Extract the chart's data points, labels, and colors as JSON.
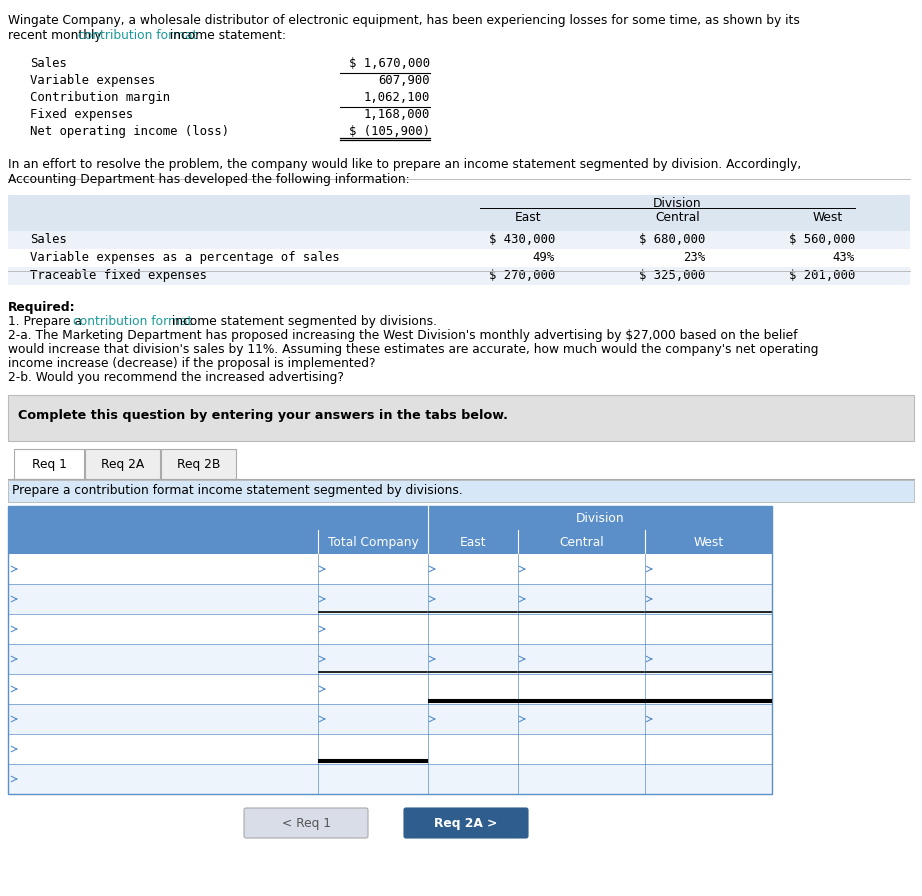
{
  "bg_color": "#ffffff",
  "mono_font": "DejaVu Sans Mono",
  "sans_font": "DejaVu Sans",
  "text_color": "#000000",
  "teal_color": "#1a9a9a",
  "blue_color": "#1e4d78",
  "title_line1": "Wingate Company, a wholesale distributor of electronic equipment, has been experiencing losses for some time, as shown by its",
  "title_line2_parts": [
    {
      "text": "recent monthly ",
      "teal": false
    },
    {
      "text": "contribution format",
      "teal": true
    },
    {
      "text": " income statement:",
      "teal": false
    }
  ],
  "income_rows": [
    {
      "label": "Sales",
      "value": "$ 1,670,000",
      "line_above": false,
      "double_below": false
    },
    {
      "label": "Variable expenses",
      "value": "607,900",
      "line_above": true,
      "double_below": false
    },
    {
      "label": "Contribution margin",
      "value": "1,062,100",
      "line_above": false,
      "double_below": false
    },
    {
      "label": "Fixed expenses",
      "value": "1,168,000",
      "line_above": true,
      "double_below": false
    },
    {
      "label": "Net operating income (loss)",
      "value": "$ (105,900)",
      "line_above": false,
      "double_below": true
    }
  ],
  "div_intro_parts": [
    {
      "text": "In an effort to resolve the problem, the company would like to prepare an income statement segmented by division. Accordingly,",
      "teal": false
    },
    {
      "text": "Accounting Department has developed the following information:",
      "teal": false
    }
  ],
  "div_table_rows": [
    {
      "label": "Sales",
      "east": "$ 430,000",
      "central": "$ 680,000",
      "west": "$ 560,000"
    },
    {
      "label": "Variable expenses as a percentage of sales",
      "east": "49%",
      "central": "23%",
      "west": "43%"
    },
    {
      "label": "Traceable fixed expenses",
      "east": "$ 270,000",
      "central": "$ 325,000",
      "west": "$ 201,000"
    }
  ],
  "div_table_bg": "#dce6f1",
  "div_table_row_bg": "#edf2f8",
  "req_lines": [
    {
      "text": "Required:",
      "bold": true,
      "parts": null
    },
    {
      "text": null,
      "bold": false,
      "parts": [
        {
          "text": "1. Prepare a ",
          "teal": false
        },
        {
          "text": "contribution format",
          "teal": true
        },
        {
          "text": " income statement segmented by divisions.",
          "teal": false
        }
      ]
    },
    {
      "text": "2-a. The Marketing Department has proposed increasing the West Division's monthly advertising by $27,000 based on the belief",
      "bold": false,
      "parts": null
    },
    {
      "text": "would increase that division's sales by 11%. Assuming these estimates are accurate, how much would the company's net operating",
      "bold": false,
      "parts": null
    },
    {
      "text": "income increase (decrease) if the proposal is implemented?",
      "bold": false,
      "parts": null
    },
    {
      "text": "2-b. Would you recommend the increased advertising?",
      "bold": false,
      "parts": null
    }
  ],
  "complete_text": "Complete this question by entering your answers in the tabs below.",
  "complete_bg": "#e0e0e0",
  "tabs": [
    "Req 1",
    "Req 2A",
    "Req 2B"
  ],
  "active_tab_idx": 0,
  "tab_line_color": "#aaaaaa",
  "instruction_text": "Prepare a contribution format income statement segmented by divisions.",
  "instruction_bg": "#d6e8f7",
  "answer_hdr_bg": "#5b8fc9",
  "answer_hdr_text": "#ffffff",
  "answer_border": "#5b8fc9",
  "answer_row_bg1": "#ffffff",
  "answer_row_bg2": "#edf4fb",
  "answer_arrow_color": "#5b8fc9",
  "answer_num_rows": 8,
  "answer_col_widths": [
    310,
    110,
    90,
    127,
    127
  ],
  "btn_back_text": "< Req 1",
  "btn_back_bg": "#d8dde8",
  "btn_back_fg": "#555555",
  "btn_next_text": "Req 2A >",
  "btn_next_bg": "#2f5e8e",
  "btn_next_fg": "#ffffff"
}
